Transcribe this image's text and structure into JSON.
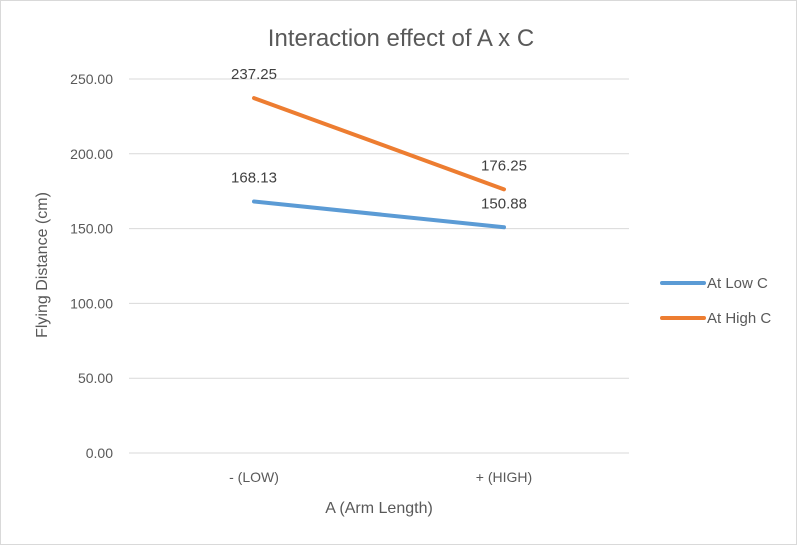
{
  "chart_data": {
    "type": "line",
    "title": "Interaction effect of A x C",
    "xlabel": "A (Arm Length)",
    "ylabel": "Flying Distance (cm)",
    "categories": [
      "- (LOW)",
      "+ (HIGH)"
    ],
    "ylim": [
      0,
      250
    ],
    "yticks": [
      "0.00",
      "50.00",
      "100.00",
      "150.00",
      "200.00",
      "250.00"
    ],
    "grid": true,
    "legend_position": "right",
    "series": [
      {
        "name": "At Low C",
        "values": [
          168.13,
          150.88
        ],
        "labels": [
          "168.13",
          "150.88"
        ],
        "color": "#5B9BD5"
      },
      {
        "name": "At High C",
        "values": [
          237.25,
          176.25
        ],
        "labels": [
          "237.25",
          "176.25"
        ],
        "color": "#ED7D31"
      }
    ]
  }
}
